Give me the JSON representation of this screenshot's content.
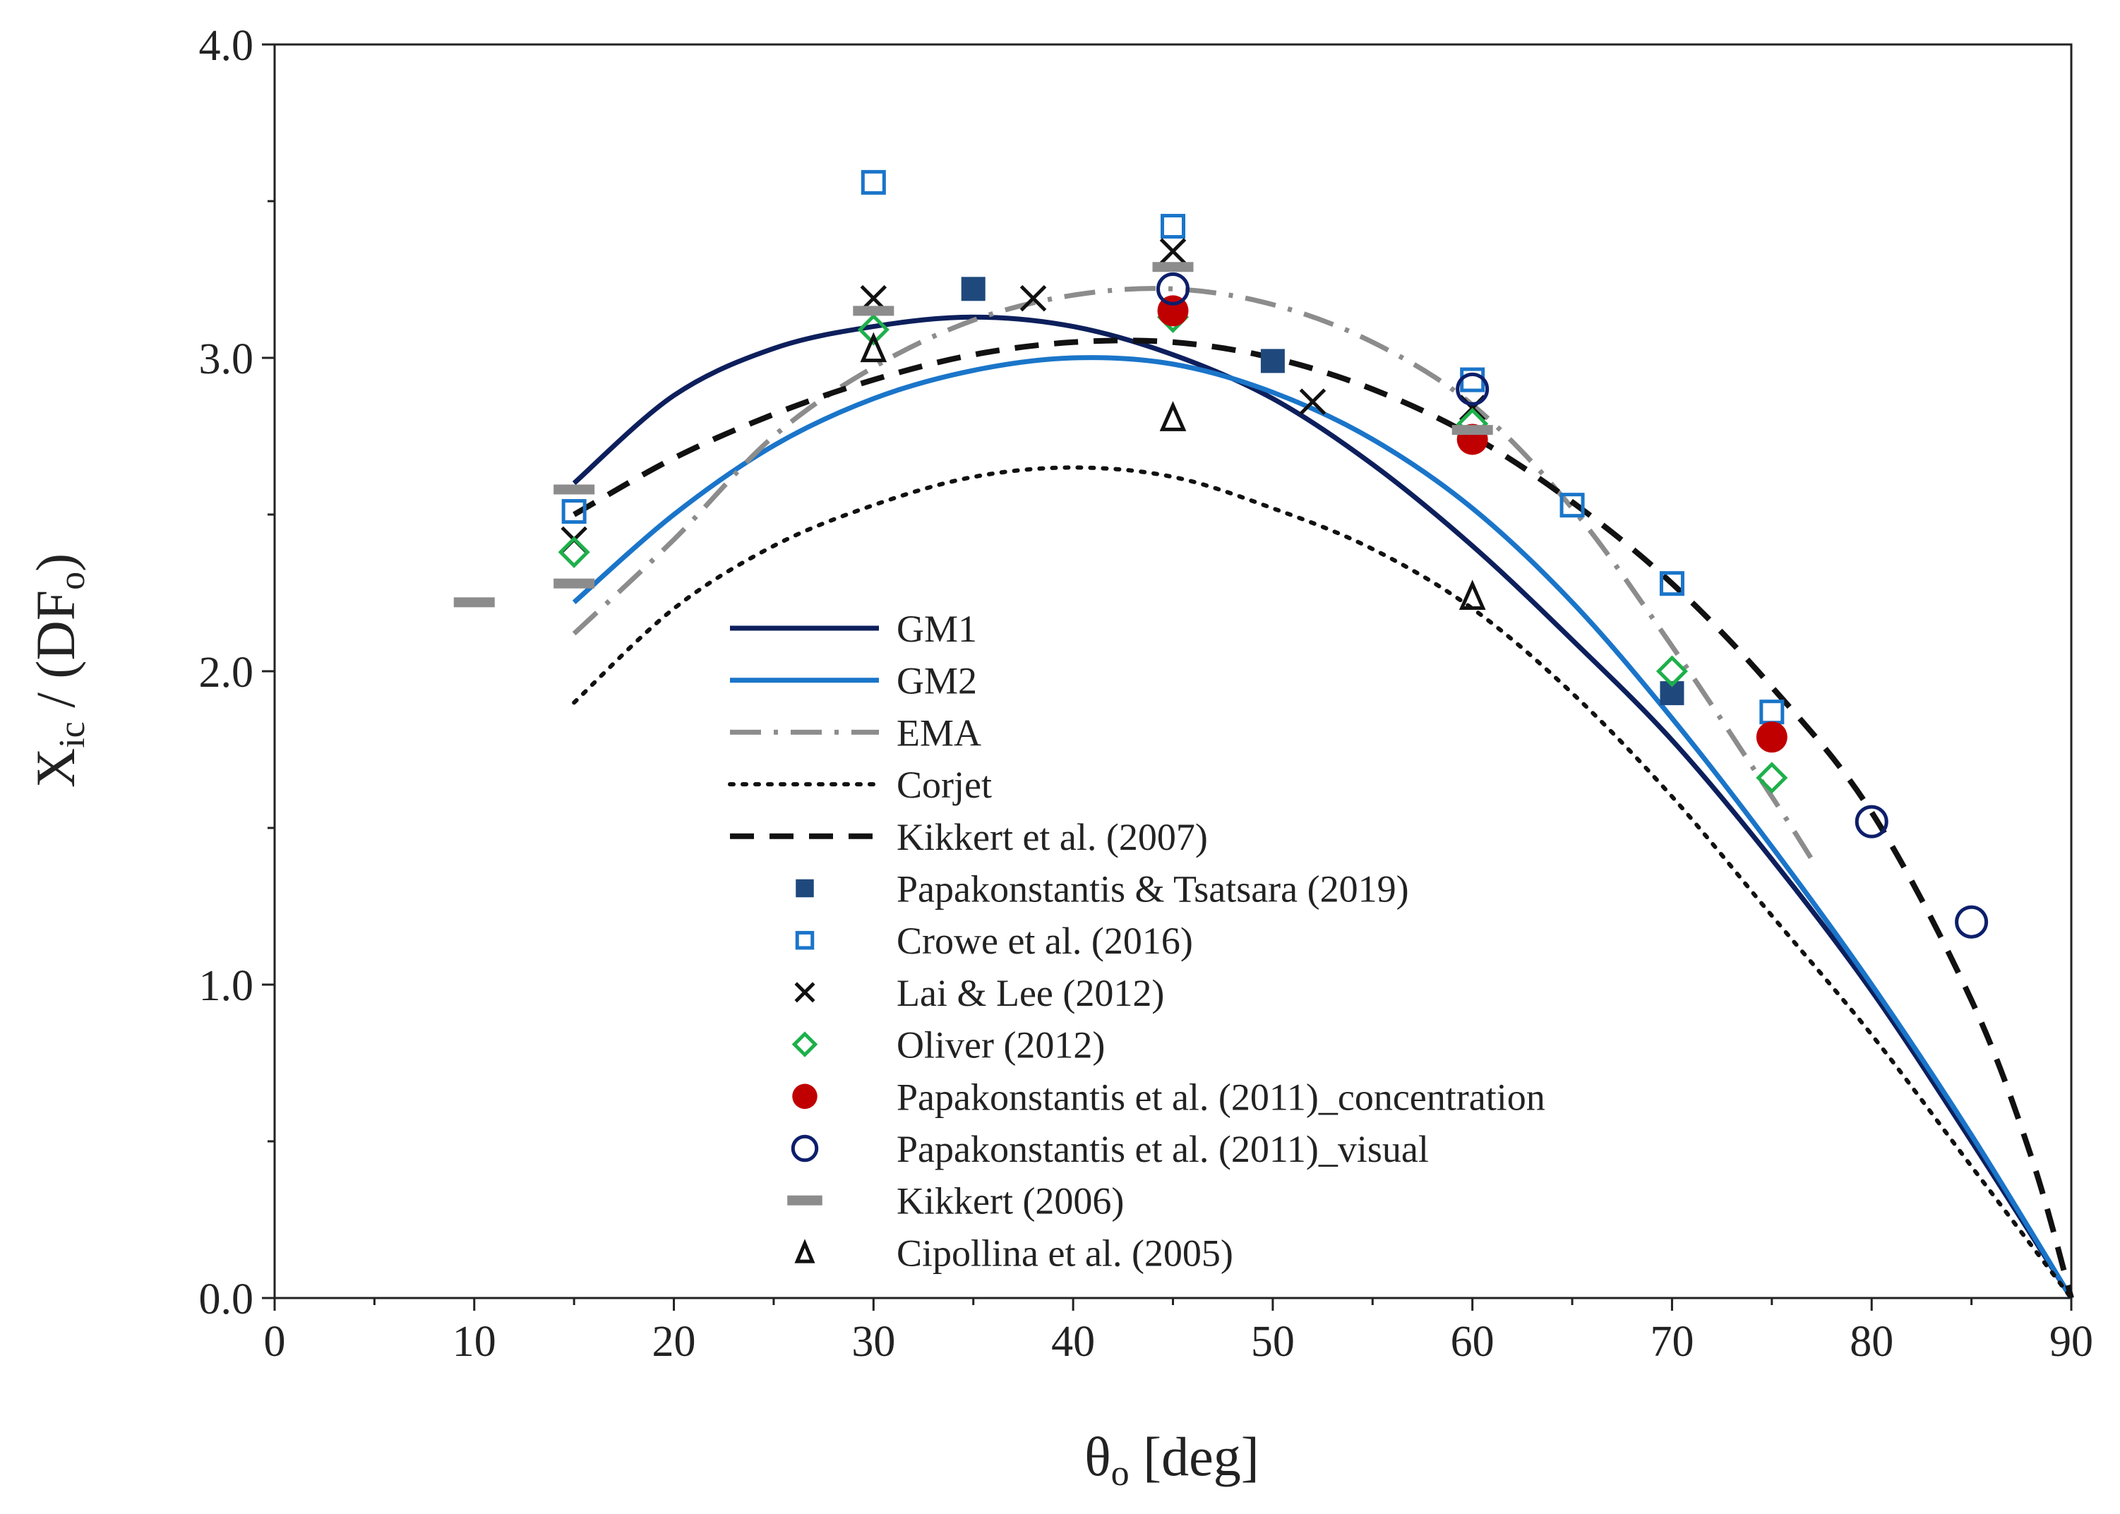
{
  "chart_data": {
    "type": "scatter",
    "title": "",
    "xlabel": "θo [deg]",
    "xlabel_main": "θ",
    "xlabel_sub": "o",
    "xlabel_rest": " [deg]",
    "ylabel_main": "X",
    "ylabel_sub": "ic",
    "ylabel_mid": " / (DF",
    "ylabel_sub2": "o",
    "ylabel_end": ")",
    "xlim": [
      0,
      90
    ],
    "ylim": [
      0,
      4
    ],
    "xticks": [
      "0",
      "10",
      "20",
      "30",
      "40",
      "50",
      "60",
      "70",
      "80",
      "90"
    ],
    "yticks": [
      "0.0",
      "1.0",
      "2.0",
      "3.0",
      "4.0"
    ],
    "grid": false,
    "legend_position": "center-left",
    "lines": [
      {
        "name": "GM1",
        "color": "#0d1f5c",
        "style": "solid",
        "x": [
          15,
          20,
          25,
          30,
          35,
          40,
          45,
          50,
          55,
          60,
          65,
          70,
          75,
          80,
          85,
          90
        ],
        "y": [
          2.6,
          2.88,
          3.03,
          3.1,
          3.13,
          3.1,
          3.01,
          2.87,
          2.66,
          2.4,
          2.1,
          1.78,
          1.4,
          0.98,
          0.5,
          0
        ]
      },
      {
        "name": "GM2",
        "color": "#1a75c9",
        "style": "solid",
        "x": [
          15,
          20,
          25,
          30,
          35,
          40,
          45,
          50,
          55,
          60,
          65,
          70,
          75,
          80,
          85,
          90
        ],
        "y": [
          2.22,
          2.5,
          2.72,
          2.87,
          2.96,
          3.0,
          2.98,
          2.89,
          2.74,
          2.52,
          2.22,
          1.85,
          1.44,
          1.0,
          0.52,
          0
        ]
      },
      {
        "name": "EMA",
        "color": "#8c8c8c",
        "style": "dashdot",
        "x": [
          15,
          20,
          25,
          30,
          35,
          40,
          45,
          50,
          55,
          60,
          65,
          70,
          75,
          77
        ],
        "y": [
          2.12,
          2.42,
          2.75,
          2.97,
          3.12,
          3.2,
          3.22,
          3.17,
          3.05,
          2.85,
          2.52,
          2.08,
          1.6,
          1.4
        ]
      },
      {
        "name": "Corjet",
        "color": "#111111",
        "style": "dotted",
        "x": [
          15,
          20,
          25,
          30,
          35,
          40,
          45,
          50,
          55,
          60,
          65,
          70,
          75,
          80,
          85,
          90
        ],
        "y": [
          1.9,
          2.2,
          2.4,
          2.53,
          2.62,
          2.65,
          2.62,
          2.52,
          2.39,
          2.2,
          1.93,
          1.6,
          1.22,
          0.84,
          0.42,
          0
        ]
      },
      {
        "name": "Kikkert et al. (2007)",
        "color": "#111111",
        "style": "dashed",
        "x": [
          15,
          20,
          25,
          30,
          35,
          40,
          45,
          50,
          55,
          60,
          65,
          70,
          75,
          80,
          85,
          88,
          90
        ],
        "y": [
          2.5,
          2.68,
          2.82,
          2.93,
          3.01,
          3.05,
          3.05,
          3.0,
          2.9,
          2.75,
          2.54,
          2.28,
          1.95,
          1.55,
          0.95,
          0.45,
          0
        ]
      }
    ],
    "series": [
      {
        "name": "Papakonstantis & Tsatsara (2019)",
        "marker": "square-filled",
        "color": "#1f497d",
        "x": [
          35,
          50,
          70
        ],
        "y": [
          3.22,
          2.99,
          1.93
        ]
      },
      {
        "name": "Crowe et al. (2016)",
        "marker": "square-open",
        "color": "#1a75c9",
        "x": [
          15,
          30,
          45,
          60,
          65,
          70,
          75
        ],
        "y": [
          2.51,
          3.56,
          3.42,
          2.93,
          2.53,
          2.28,
          1.87
        ]
      },
      {
        "name": "Lai & Lee (2012)",
        "marker": "x",
        "color": "#111111",
        "x": [
          15,
          30,
          38,
          45,
          52,
          60
        ],
        "y": [
          2.42,
          3.19,
          3.19,
          3.34,
          2.86,
          2.84
        ]
      },
      {
        "name": "Oliver (2012)",
        "marker": "diamond-open",
        "color": "#1db04a",
        "x": [
          15,
          30,
          45,
          60,
          70,
          75
        ],
        "y": [
          2.38,
          3.09,
          3.13,
          2.79,
          2.0,
          1.66
        ]
      },
      {
        "name": "Papakonstantis et al. (2011)_concentration",
        "marker": "circle-filled",
        "color": "#c00000",
        "x": [
          45,
          60,
          75
        ],
        "y": [
          3.15,
          2.74,
          1.79
        ]
      },
      {
        "name": "Papakonstantis et al. (2011)_visual",
        "marker": "circle-open",
        "color": "#0d1f6b",
        "x": [
          45,
          60,
          80,
          85
        ],
        "y": [
          3.22,
          2.9,
          1.52,
          1.2
        ]
      },
      {
        "name": "Kikkert (2006)",
        "marker": "dash",
        "color": "#8c8c8c",
        "x": [
          10,
          15,
          15,
          30,
          45,
          60
        ],
        "y": [
          2.22,
          2.58,
          2.28,
          3.15,
          3.29,
          2.77
        ]
      },
      {
        "name": "Cipollina et al. (2005)",
        "marker": "triangle-open",
        "color": "#111111",
        "x": [
          30,
          45,
          60
        ],
        "y": [
          3.03,
          2.81,
          2.24
        ]
      }
    ]
  }
}
